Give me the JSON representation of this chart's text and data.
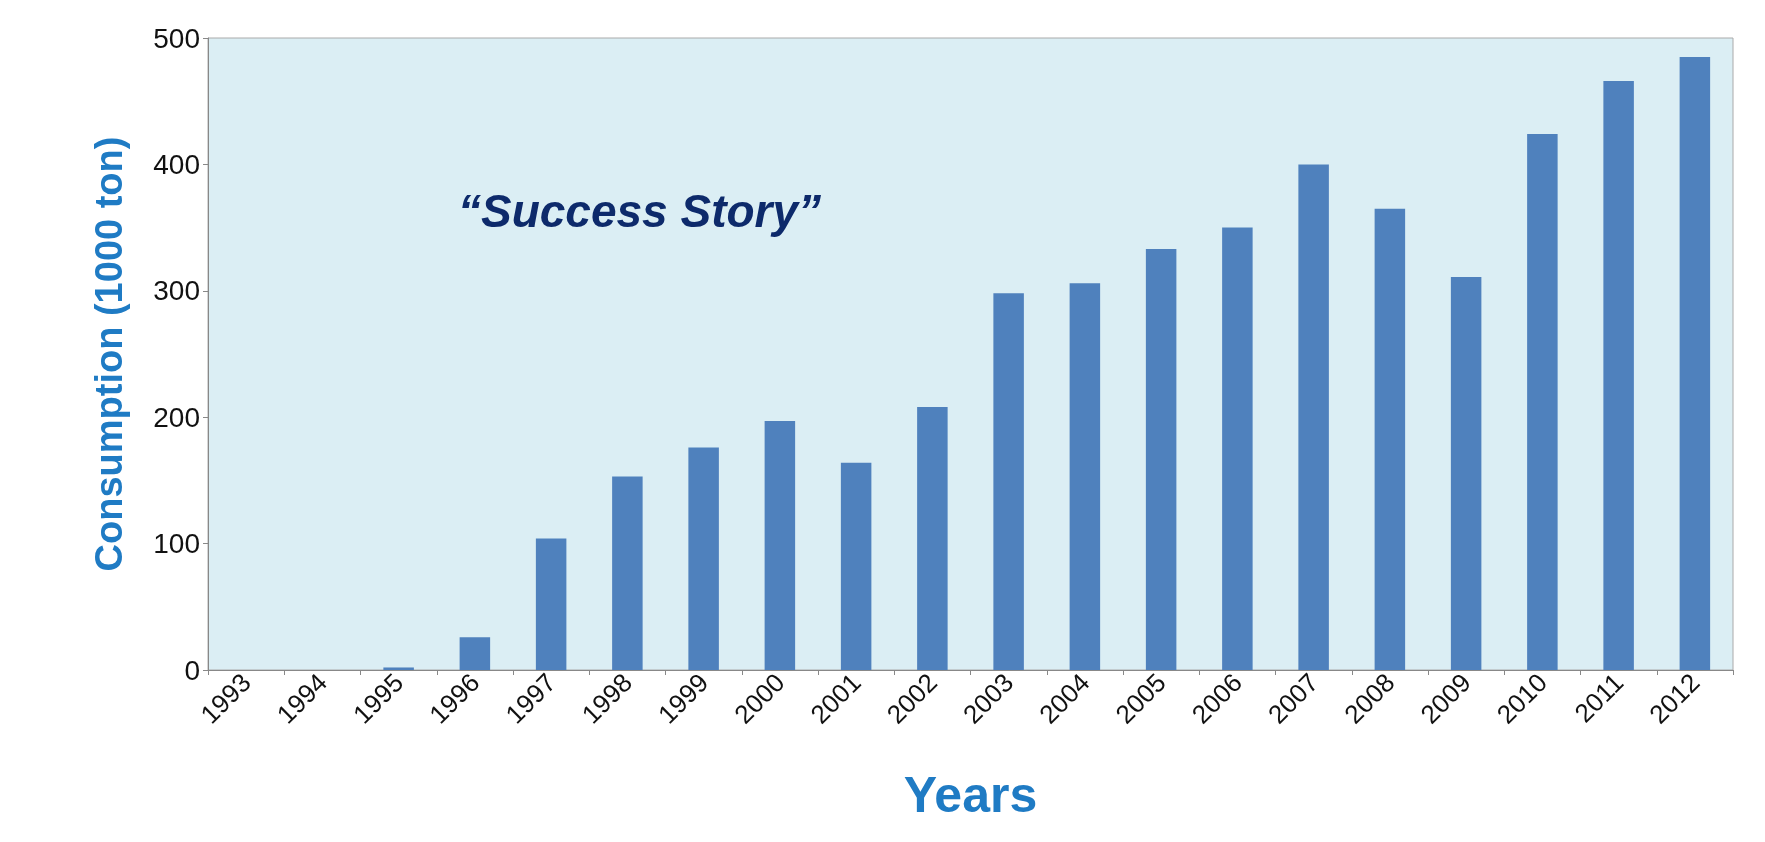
{
  "chart_data": {
    "type": "bar",
    "xlabel": "Years",
    "ylabel": "Consumption (1000 ton)",
    "annotations": [
      "“Success Story”"
    ],
    "categories": [
      "1993",
      "1994",
      "1995",
      "1996",
      "1997",
      "1998",
      "1999",
      "2000",
      "2001",
      "2002",
      "2003",
      "2004",
      "2005",
      "2006",
      "2007",
      "2008",
      "2009",
      "2010",
      "2011",
      "2012"
    ],
    "values": [
      0,
      0,
      2,
      26,
      104,
      153,
      176,
      197,
      164,
      208,
      298,
      306,
      333,
      350,
      400,
      365,
      311,
      424,
      466,
      485
    ],
    "color": "#4f81bd",
    "ylim": [
      0,
      500
    ],
    "yticks": [
      0,
      100,
      200,
      300,
      400,
      500
    ],
    "grid": false
  }
}
